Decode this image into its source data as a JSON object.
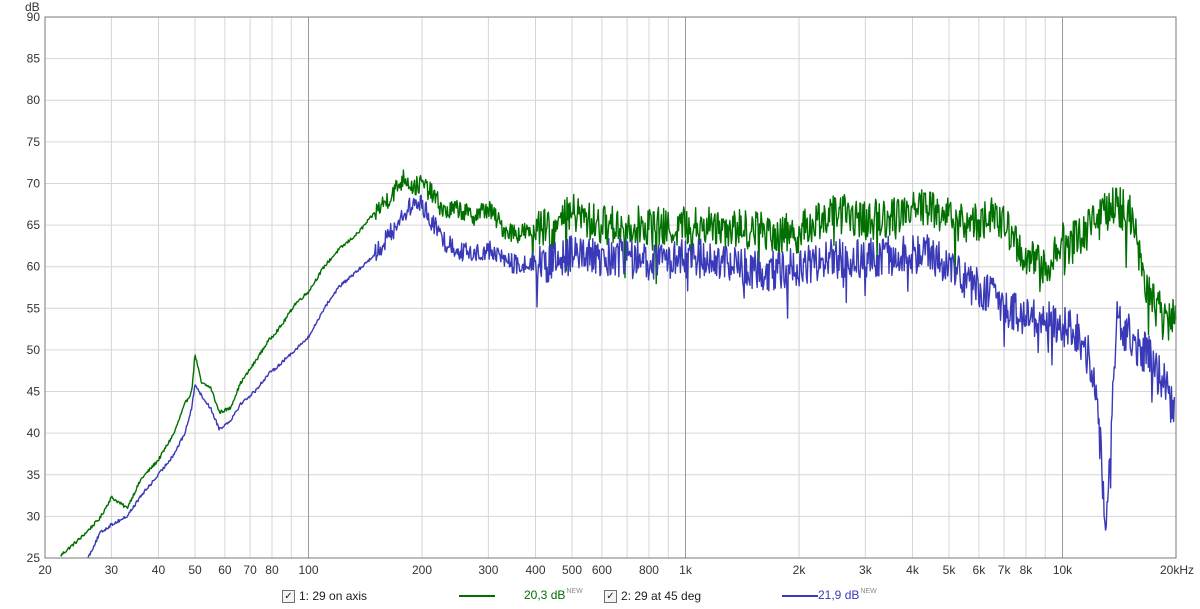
{
  "chart_data": {
    "type": "line",
    "x_scale": "log",
    "y_unit": "dB",
    "x_unit": "kHz",
    "xlim": [
      20,
      20000
    ],
    "ylim": [
      25,
      90
    ],
    "grid": true,
    "legend_position": "bottom",
    "y_ticks": [
      "25",
      "30",
      "35",
      "40",
      "45",
      "50",
      "55",
      "60",
      "65",
      "70",
      "75",
      "80",
      "85",
      "90"
    ],
    "x_ticks": [
      {
        "value": 20,
        "label": "20"
      },
      {
        "value": 30,
        "label": "30"
      },
      {
        "value": 40,
        "label": "40"
      },
      {
        "value": 50,
        "label": "50"
      },
      {
        "value": 60,
        "label": "60"
      },
      {
        "value": 70,
        "label": "70"
      },
      {
        "value": 80,
        "label": "80"
      },
      {
        "value": 100,
        "label": "100"
      },
      {
        "value": 200,
        "label": "200"
      },
      {
        "value": 300,
        "label": "300"
      },
      {
        "value": 400,
        "label": "400"
      },
      {
        "value": 500,
        "label": "500"
      },
      {
        "value": 600,
        "label": "600"
      },
      {
        "value": 800,
        "label": "800"
      },
      {
        "value": 1000,
        "label": "1k"
      },
      {
        "value": 2000,
        "label": "2k"
      },
      {
        "value": 3000,
        "label": "3k"
      },
      {
        "value": 4000,
        "label": "4k"
      },
      {
        "value": 5000,
        "label": "5k"
      },
      {
        "value": 6000,
        "label": "6k"
      },
      {
        "value": 7000,
        "label": "7k"
      },
      {
        "value": 8000,
        "label": "8k"
      },
      {
        "value": 10000,
        "label": "10k"
      },
      {
        "value": 20000,
        "label": "20kHz"
      }
    ],
    "series": [
      {
        "name": "1: 29 on axis",
        "color": "#007000",
        "smoothing_db": "20,3 dB",
        "x": [
          22,
          25,
          28,
          30,
          33,
          36,
          40,
          44,
          47,
          49,
          50,
          52,
          55,
          58,
          62,
          66,
          72,
          78,
          85,
          92,
          100,
          110,
          120,
          135,
          150,
          165,
          180,
          190,
          200,
          215,
          230,
          250,
          270,
          300,
          330,
          360,
          400,
          450,
          500,
          550,
          600,
          700,
          800,
          900,
          1000,
          1200,
          1400,
          1600,
          1800,
          2000,
          2200,
          2500,
          2800,
          3000,
          3500,
          4000,
          4500,
          5000,
          5500,
          6000,
          6500,
          7000,
          7500,
          8000,
          9000,
          10000,
          11000,
          12000,
          13000,
          14000,
          15000,
          16000,
          17000,
          18000,
          19000,
          20000
        ],
        "y": [
          25.3,
          27.5,
          29.8,
          32.3,
          31.0,
          34.5,
          36.8,
          40.0,
          43.5,
          45.0,
          49.5,
          46.0,
          45.5,
          42.5,
          43.0,
          46.0,
          48.5,
          51.0,
          53.0,
          55.5,
          57.0,
          60.0,
          62.0,
          64.0,
          66.5,
          68.5,
          70.8,
          69.5,
          70.0,
          68.5,
          66.5,
          67.0,
          66.0,
          67.0,
          64.5,
          64.0,
          64.5,
          64.5,
          66.5,
          65.5,
          65.0,
          65.0,
          65.0,
          64.5,
          65.0,
          65.0,
          64.5,
          64.5,
          64.0,
          64.0,
          65.5,
          66.5,
          66.0,
          65.5,
          66.0,
          67.5,
          67.0,
          66.0,
          65.0,
          65.5,
          66.0,
          65.0,
          63.0,
          61.0,
          60.0,
          62.5,
          63.5,
          65.5,
          66.5,
          67.0,
          67.0,
          61.5,
          57.0,
          54.5,
          53.5,
          55.0
        ]
      },
      {
        "name": "2: 29 at 45 deg",
        "color": "#3a3ab8",
        "smoothing_db": "21,9 dB",
        "x": [
          26,
          28,
          30,
          33,
          36,
          40,
          44,
          47,
          49,
          50,
          52,
          55,
          58,
          62,
          66,
          72,
          78,
          85,
          92,
          100,
          110,
          120,
          135,
          150,
          165,
          180,
          190,
          200,
          215,
          230,
          250,
          270,
          300,
          330,
          360,
          400,
          450,
          500,
          550,
          600,
          700,
          800,
          900,
          1000,
          1200,
          1400,
          1600,
          1800,
          2000,
          2200,
          2500,
          2800,
          3000,
          3500,
          4000,
          4500,
          5000,
          5500,
          6000,
          6500,
          7000,
          7500,
          8000,
          9000,
          10000,
          11000,
          12000,
          12500,
          13000,
          13500,
          14000,
          15000,
          16000,
          17000,
          18000,
          19000,
          19800
        ],
        "y": [
          25.0,
          28.0,
          29.0,
          30.0,
          32.5,
          35.0,
          37.5,
          40.0,
          43.0,
          46.0,
          44.5,
          43.0,
          40.5,
          41.5,
          43.5,
          45.0,
          47.0,
          48.5,
          50.0,
          51.5,
          55.0,
          57.5,
          59.5,
          61.5,
          64.0,
          66.5,
          67.5,
          67.5,
          65.0,
          63.0,
          62.0,
          61.5,
          62.0,
          61.0,
          60.0,
          60.5,
          60.5,
          61.5,
          61.0,
          61.0,
          61.0,
          60.5,
          60.5,
          61.0,
          61.0,
          60.0,
          59.5,
          59.5,
          60.0,
          60.5,
          61.0,
          61.0,
          61.0,
          61.5,
          61.5,
          61.5,
          60.0,
          58.5,
          57.5,
          56.5,
          55.5,
          54.5,
          54.0,
          53.5,
          53.0,
          51.5,
          48.0,
          41.0,
          28.0,
          42.0,
          54.0,
          51.5,
          50.0,
          49.0,
          47.0,
          45.0,
          42.0
        ]
      }
    ]
  },
  "legend": {
    "series1_label": "1: 29 on axis",
    "series1_db": "20,3 dB",
    "series2_label": "2: 29 at 45 deg",
    "series2_db": "21,9 dB",
    "new_badge": "NEW",
    "check_glyph": "✓"
  }
}
